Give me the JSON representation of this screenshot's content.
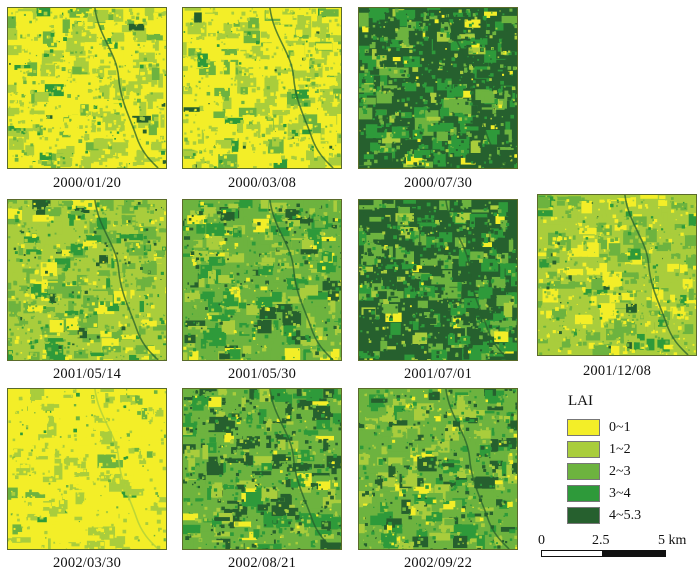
{
  "legend": {
    "title": "LAI",
    "classes": [
      {
        "label": "0~1",
        "color": "#f3ee28"
      },
      {
        "label": "1~2",
        "color": "#a9cd3c"
      },
      {
        "label": "2~3",
        "color": "#6db33f"
      },
      {
        "label": "3~4",
        "color": "#2e9a3a"
      },
      {
        "label": "4~5.3",
        "color": "#26602e"
      }
    ]
  },
  "scale_bar": {
    "ticks": [
      "0",
      "2.5",
      "5 km"
    ]
  },
  "panels": [
    {
      "date": "2000/01/20",
      "mix": [
        0.42,
        0.4,
        0.13,
        0.04,
        0.01
      ]
    },
    {
      "date": "2000/03/08",
      "mix": [
        0.45,
        0.4,
        0.11,
        0.03,
        0.01
      ]
    },
    {
      "date": "2000/07/30",
      "mix": [
        0.03,
        0.1,
        0.22,
        0.3,
        0.35
      ]
    },
    {
      "date": "2001/05/14",
      "mix": [
        0.14,
        0.34,
        0.32,
        0.14,
        0.06
      ]
    },
    {
      "date": "2001/05/30",
      "mix": [
        0.07,
        0.22,
        0.34,
        0.24,
        0.13
      ]
    },
    {
      "date": "2001/07/01",
      "mix": [
        0.03,
        0.1,
        0.24,
        0.3,
        0.33
      ]
    },
    {
      "date": "2001/12/08",
      "mix": [
        0.24,
        0.44,
        0.24,
        0.06,
        0.02
      ]
    },
    {
      "date": "2002/03/30",
      "mix": [
        0.7,
        0.24,
        0.05,
        0.01,
        0.0
      ]
    },
    {
      "date": "2002/08/21",
      "mix": [
        0.06,
        0.16,
        0.28,
        0.26,
        0.24
      ]
    },
    {
      "date": "2002/09/22",
      "mix": [
        0.06,
        0.22,
        0.36,
        0.22,
        0.14
      ]
    }
  ]
}
